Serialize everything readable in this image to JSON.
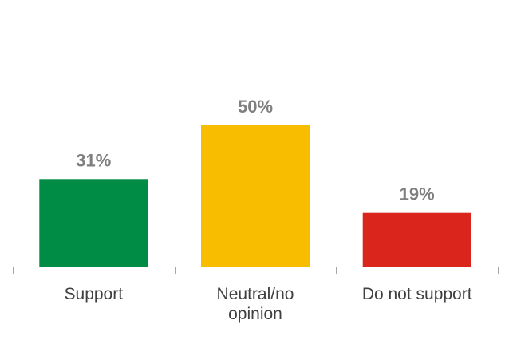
{
  "chart_data": {
    "type": "bar",
    "categories": [
      "Support",
      "Neutral/no opinion",
      "Do not support"
    ],
    "category_label_lines": [
      [
        "Support"
      ],
      [
        "Neutral/no",
        "opinion"
      ],
      [
        "Do not support"
      ]
    ],
    "values": [
      31,
      50,
      19
    ],
    "data_labels": [
      "31%",
      "50%",
      "19%"
    ],
    "colors": [
      "#008c45",
      "#f9bd00",
      "#d9251c"
    ],
    "value_label_color": "#7f7f7f",
    "category_label_color": "#404040",
    "axis_color": "#a6a6a6",
    "ylim": [
      0,
      80
    ],
    "grid": false,
    "legend": "none",
    "title": "",
    "xlabel": "",
    "ylabel": ""
  }
}
